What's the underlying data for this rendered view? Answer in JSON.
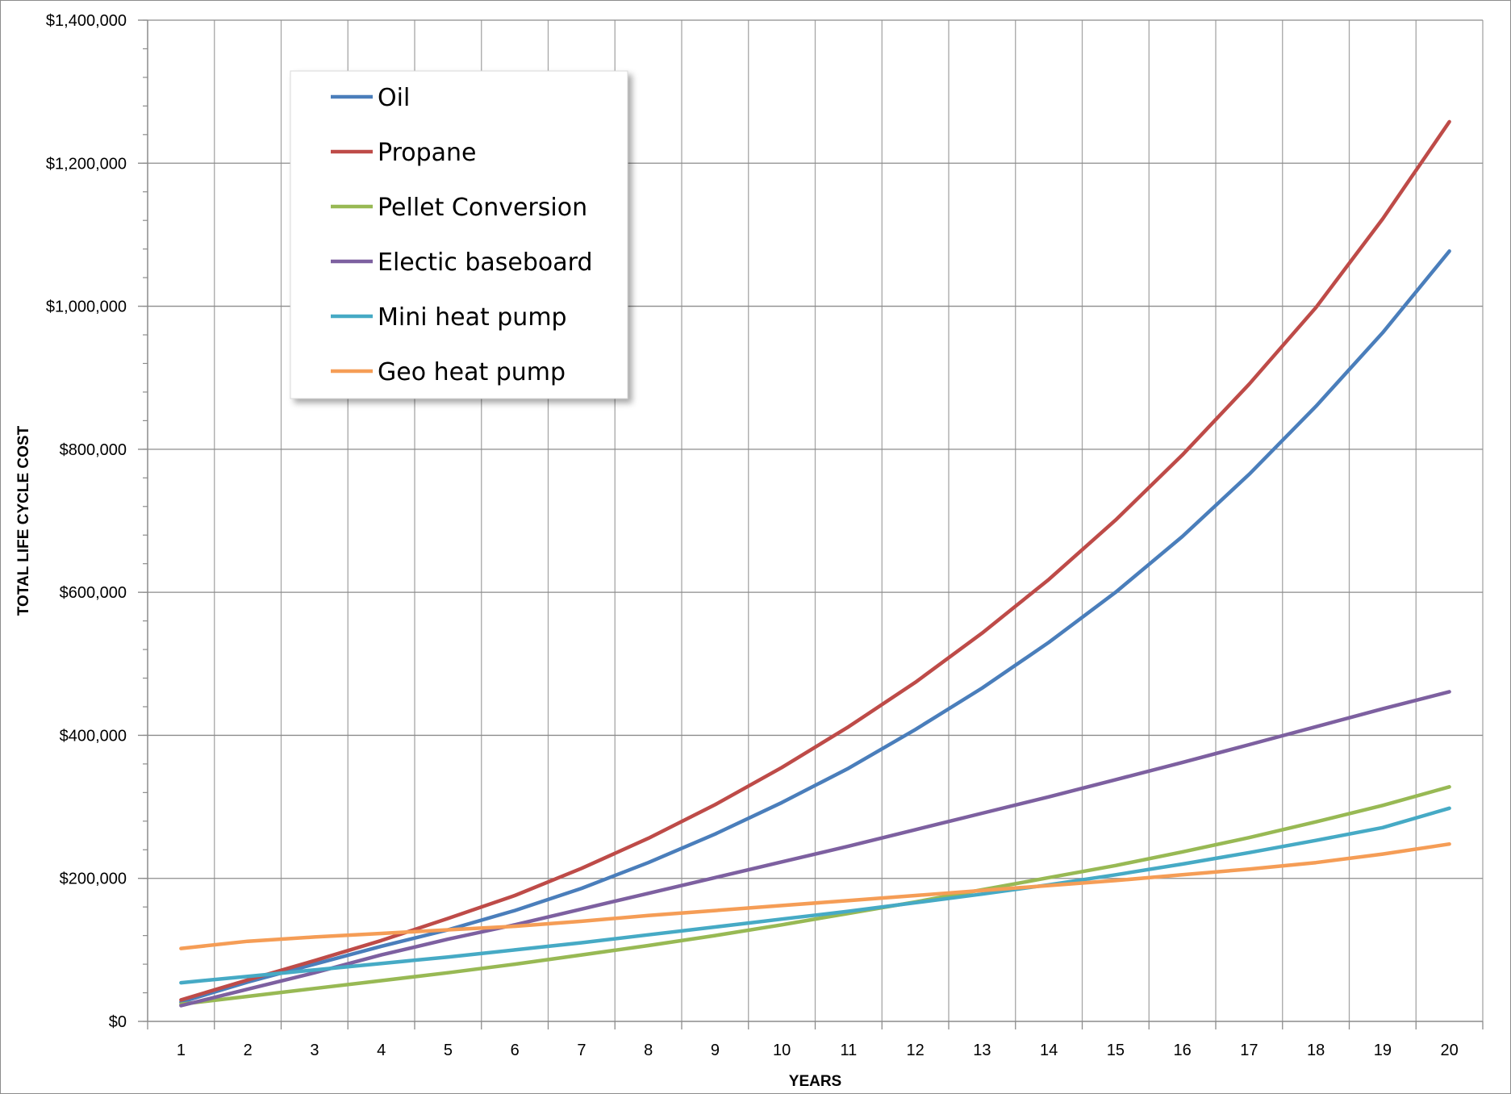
{
  "chart_data": {
    "type": "line",
    "title": "",
    "xlabel": "YEARS",
    "ylabel": "TOTAL LIFE CYCLE COST",
    "x": [
      1,
      2,
      3,
      4,
      5,
      6,
      7,
      8,
      9,
      10,
      11,
      12,
      13,
      14,
      15,
      16,
      17,
      18,
      19,
      20
    ],
    "ylim": [
      0,
      1400000
    ],
    "y_ticks": [
      0,
      200000,
      400000,
      600000,
      800000,
      1000000,
      1200000,
      1400000
    ],
    "y_tick_labels": [
      "$0",
      "$200,000",
      "$400,000",
      "$600,000",
      "$800,000",
      "$1,000,000",
      "$1,200,000",
      "$1,400,000"
    ],
    "grid": true,
    "legend_position": "top-left",
    "series": [
      {
        "name": "Oil",
        "color": "#4A7EBB",
        "values": [
          27000,
          55000,
          80000,
          105000,
          128000,
          155000,
          186000,
          222000,
          262000,
          306000,
          354000,
          408000,
          466000,
          530000,
          600000,
          678000,
          765000,
          860000,
          963000,
          1077000
        ]
      },
      {
        "name": "Propane",
        "color": "#BE4B48",
        "values": [
          30000,
          58000,
          85000,
          113000,
          144000,
          176000,
          214000,
          256000,
          303000,
          355000,
          412000,
          474000,
          543000,
          618000,
          701000,
          792000,
          891000,
          998000,
          1122000,
          1258000
        ]
      },
      {
        "name": "Pellet Conversion",
        "color": "#98B954",
        "values": [
          24000,
          35000,
          46000,
          57000,
          68000,
          80000,
          93000,
          106000,
          120000,
          135000,
          151000,
          167000,
          184000,
          201000,
          218000,
          237000,
          257000,
          279000,
          302000,
          328000
        ]
      },
      {
        "name": "Electic baseboard",
        "color": "#7D60A0",
        "values": [
          22000,
          45000,
          68000,
          93000,
          115000,
          135000,
          157000,
          179000,
          201000,
          223000,
          245000,
          268000,
          291000,
          314000,
          338000,
          362000,
          387000,
          412000,
          437000,
          461000
        ]
      },
      {
        "name": "Mini heat pump",
        "color": "#46AAC5",
        "values": [
          54000,
          63000,
          72000,
          81000,
          90000,
          100000,
          110000,
          121000,
          132000,
          143000,
          154000,
          166000,
          178000,
          191000,
          205000,
          220000,
          236000,
          253000,
          271000,
          298000
        ]
      },
      {
        "name": "Geo heat pump",
        "color": "#F59D56",
        "values": [
          102000,
          112000,
          118000,
          123000,
          128000,
          133000,
          140000,
          148000,
          155000,
          162000,
          169000,
          176000,
          183000,
          190000,
          197000,
          205000,
          213000,
          222000,
          234000,
          248000
        ]
      }
    ]
  }
}
